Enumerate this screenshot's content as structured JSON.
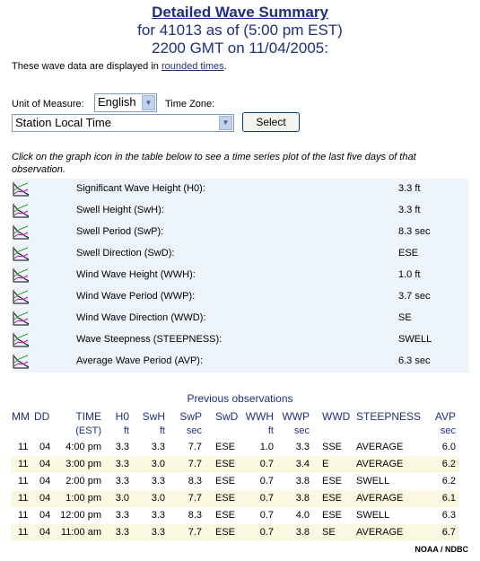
{
  "header": {
    "title": "Detailed Wave Summary",
    "line2": "for 41013 as of (5:00 pm EST)",
    "line3": "2200 GMT on 11/04/2005:"
  },
  "note": {
    "prefix": "These wave data are displayed in ",
    "link": "rounded times",
    "suffix": "."
  },
  "controls": {
    "unit_label": "Unit of Measure:",
    "unit_value": "English",
    "tz_label": "Time Zone:",
    "tz_value": "Station Local Time",
    "select_button": "Select"
  },
  "instructions": "Click on the graph icon in the table below to see a time series plot of the last five days of that observation.",
  "summary": [
    {
      "name": "Significant Wave Height (H0):",
      "value": "3.3 ft",
      "icon": "graph-icon"
    },
    {
      "name": "Swell Height (SwH):",
      "value": "3.3 ft",
      "icon": "graph-icon"
    },
    {
      "name": "Swell Period (SwP):",
      "value": "8.3 sec",
      "icon": "graph-icon"
    },
    {
      "name": "Swell Direction (SwD):",
      "value": "ESE",
      "icon": "graph-icon"
    },
    {
      "name": "Wind Wave Height (WWH):",
      "value": "1.0 ft",
      "icon": "graph-icon"
    },
    {
      "name": "Wind Wave Period (WWP):",
      "value": "3.7 sec",
      "icon": "graph-icon"
    },
    {
      "name": "Wind Wave Direction (WWD):",
      "value": "SE",
      "icon": "graph-icon"
    },
    {
      "name": "Wave Steepness (STEEPNESS):",
      "value": "SWELL",
      "icon": "graph-icon"
    },
    {
      "name": "Average Wave Period (AVP):",
      "value": "6.3 sec",
      "icon": "graph-icon"
    }
  ],
  "previous": {
    "title": "Previous observations",
    "headers": [
      "MM",
      "DD",
      "TIME",
      "H0",
      "SwH",
      "SwP",
      "SwD",
      "WWH",
      "WWP",
      "WWD",
      "STEEPNESS",
      "AVP"
    ],
    "units": [
      "",
      "",
      "(EST)",
      "ft",
      "ft",
      "sec",
      "",
      "ft",
      "sec",
      "",
      "",
      "sec"
    ],
    "rows": [
      [
        "11",
        "04",
        "4:00 pm",
        "3.3",
        "3.3",
        "7.7",
        "ESE",
        "1.0",
        "3.3",
        "SSE",
        "AVERAGE",
        "6.0"
      ],
      [
        "11",
        "04",
        "3:00 pm",
        "3.3",
        "3.0",
        "7.7",
        "ESE",
        "0.7",
        "3.4",
        "E",
        "AVERAGE",
        "6.2"
      ],
      [
        "11",
        "04",
        "2:00 pm",
        "3.3",
        "3.3",
        "8.3",
        "ESE",
        "0.7",
        "3.8",
        "ESE",
        "SWELL",
        "6.2"
      ],
      [
        "11",
        "04",
        "1:00 pm",
        "3.0",
        "3.0",
        "7.7",
        "ESE",
        "0.7",
        "3.8",
        "ESE",
        "AVERAGE",
        "6.1"
      ],
      [
        "11",
        "04",
        "12:00 pm",
        "3.3",
        "3.3",
        "8.3",
        "ESE",
        "0.7",
        "4.0",
        "ESE",
        "SWELL",
        "6.3"
      ],
      [
        "11",
        "04",
        "11:00 am",
        "3.3",
        "3.3",
        "7.7",
        "ESE",
        "0.7",
        "3.8",
        "SE",
        "AVERAGE",
        "6.7"
      ]
    ]
  },
  "footer": "NOAA / NDBC"
}
